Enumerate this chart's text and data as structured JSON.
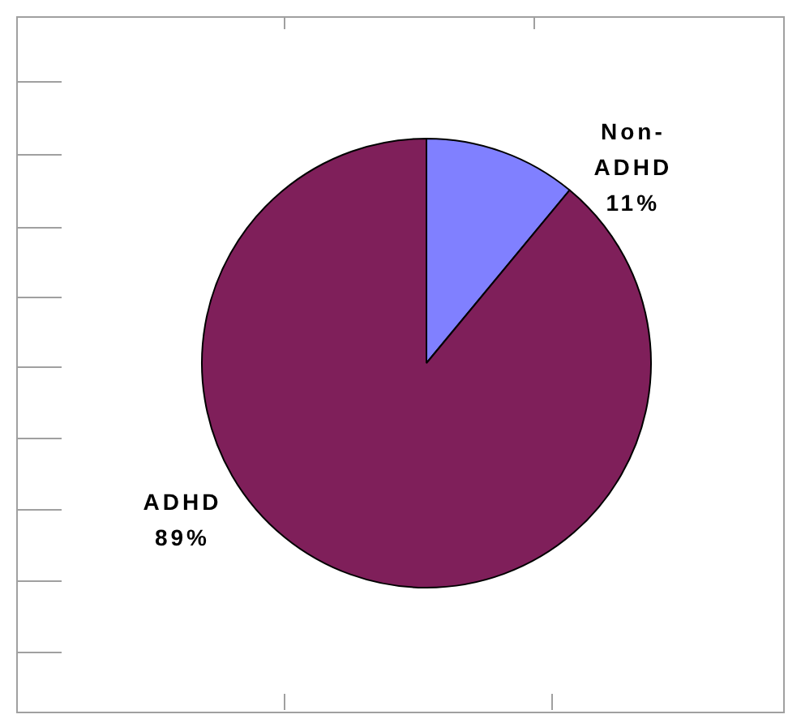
{
  "chart_data": {
    "type": "pie",
    "categories": [
      "Non-ADHD",
      "ADHD"
    ],
    "values": [
      11,
      89
    ],
    "value_labels": [
      "11%",
      "89%"
    ],
    "colors": [
      "#8080ff",
      "#7f1f5a"
    ],
    "legend": false
  }
}
